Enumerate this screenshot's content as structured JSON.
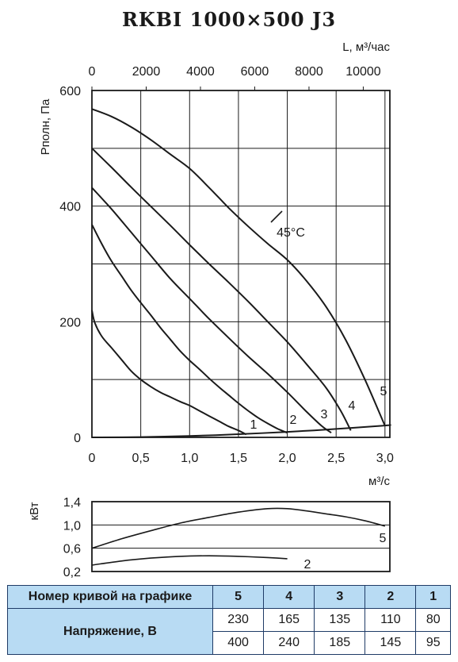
{
  "title": "RKBI 1000×500 J3",
  "chart_data": [
    {
      "type": "line",
      "xlabel": "м³/с",
      "ylabel": "Рполн, Па",
      "x2label": "L, м³/час",
      "xlim": [
        0,
        3.05
      ],
      "ylim": [
        0,
        600
      ],
      "x2lim": [
        0,
        10980
      ],
      "x_ticks": [
        0,
        0.5,
        1.0,
        1.5,
        2.0,
        2.5,
        3.0
      ],
      "x_tick_labels": [
        "0",
        "0,5",
        "1,0",
        "1,5",
        "2,0",
        "2,5",
        "3,0"
      ],
      "y_ticks": [
        0,
        200,
        400,
        600
      ],
      "y_tick_labels": [
        "0",
        "200",
        "400",
        "600"
      ],
      "x2_ticks": [
        0,
        2000,
        4000,
        6000,
        8000,
        10000
      ],
      "x2_tick_labels": [
        "0",
        "2000",
        "4000",
        "6000",
        "8000",
        "10000"
      ],
      "grid": true,
      "series": [
        {
          "name": "1",
          "x": [
            0,
            0.03,
            0.1,
            0.2,
            0.3,
            0.4,
            0.5,
            0.6,
            0.7,
            0.8,
            0.9,
            1.0,
            1.1,
            1.2,
            1.3,
            1.4,
            1.5,
            1.58
          ],
          "y": [
            220,
            198,
            175,
            155,
            135,
            115,
            100,
            88,
            78,
            70,
            62,
            55,
            46,
            37,
            28,
            19,
            12,
            5
          ]
        },
        {
          "name": "2",
          "x": [
            0,
            0.1,
            0.2,
            0.3,
            0.4,
            0.5,
            0.6,
            0.7,
            0.8,
            0.9,
            1.0,
            1.1,
            1.2,
            1.3,
            1.4,
            1.5,
            1.6,
            1.7,
            1.8,
            1.9,
            2.0
          ],
          "y": [
            368,
            335,
            305,
            280,
            255,
            233,
            212,
            190,
            170,
            150,
            133,
            118,
            102,
            87,
            73,
            59,
            46,
            34,
            24,
            15,
            8
          ]
        },
        {
          "name": "3",
          "x": [
            0,
            0.2,
            0.4,
            0.6,
            0.8,
            1.0,
            1.2,
            1.4,
            1.6,
            1.8,
            2.0,
            2.2,
            2.35,
            2.45
          ],
          "y": [
            432,
            395,
            355,
            315,
            275,
            240,
            205,
            172,
            140,
            110,
            78,
            44,
            20,
            8
          ]
        },
        {
          "name": "4",
          "x": [
            0,
            0.2,
            0.4,
            0.6,
            0.8,
            1.0,
            1.2,
            1.4,
            1.6,
            1.8,
            2.0,
            2.2,
            2.4,
            2.55,
            2.65
          ],
          "y": [
            500,
            467,
            433,
            400,
            367,
            333,
            300,
            268,
            235,
            200,
            165,
            126,
            85,
            45,
            12
          ]
        },
        {
          "name": "5",
          "x": [
            0,
            0.2,
            0.4,
            0.6,
            0.8,
            1.0,
            1.2,
            1.4,
            1.6,
            1.8,
            2.0,
            2.2,
            2.4,
            2.6,
            2.8,
            3.0
          ],
          "y": [
            568,
            555,
            537,
            515,
            490,
            465,
            432,
            397,
            365,
            335,
            307,
            270,
            225,
            168,
            98,
            20
          ]
        },
        {
          "name": "45°C",
          "x": [
            0,
            0.2,
            0.4,
            0.6,
            0.8,
            1.0,
            1.2,
            1.4,
            1.6,
            1.8,
            2.0,
            2.2,
            2.4,
            2.6,
            2.8,
            3.0
          ],
          "y": [
            568,
            555,
            537,
            515,
            490,
            465,
            432,
            397,
            365,
            335,
            307,
            270,
            225,
            168,
            98,
            20
          ]
        },
        {
          "name": "system",
          "x": [
            0,
            0.5,
            1.0,
            1.5,
            2.0,
            2.5,
            3.0,
            3.05
          ],
          "y": [
            0,
            0.6,
            2.4,
            5.5,
            9.5,
            14.5,
            20.5,
            21.5
          ]
        }
      ],
      "annotations": [
        "1",
        "2",
        "3",
        "4",
        "5",
        "45°C"
      ]
    },
    {
      "type": "line",
      "ylabel": "кВт",
      "xlim": [
        0,
        3.05
      ],
      "ylim": [
        0.2,
        1.4
      ],
      "y_ticks": [
        0.2,
        0.6,
        1.0,
        1.4
      ],
      "y_tick_labels": [
        "0,2",
        "0,6",
        "1,0",
        "1,4"
      ],
      "grid": true,
      "series": [
        {
          "name": "5",
          "x": [
            0,
            0.3,
            0.6,
            0.9,
            1.2,
            1.5,
            1.8,
            2.0,
            2.2,
            2.4,
            2.6,
            2.8,
            3.0
          ],
          "y": [
            0.6,
            0.76,
            0.9,
            1.03,
            1.13,
            1.22,
            1.28,
            1.28,
            1.24,
            1.19,
            1.14,
            1.07,
            0.98
          ]
        },
        {
          "name": "2",
          "x": [
            0,
            0.3,
            0.6,
            0.9,
            1.2,
            1.5,
            1.8,
            2.0
          ],
          "y": [
            0.31,
            0.38,
            0.43,
            0.46,
            0.47,
            0.46,
            0.44,
            0.42
          ]
        }
      ],
      "annotations": [
        "5",
        "2"
      ]
    }
  ],
  "table": {
    "header_label": "Номер кривой на графике",
    "curves": [
      "5",
      "4",
      "3",
      "2",
      "1"
    ],
    "row_label": "Напряжение, В",
    "rows": [
      [
        "230",
        "165",
        "135",
        "110",
        "80"
      ],
      [
        "400",
        "240",
        "185",
        "145",
        "95"
      ]
    ]
  }
}
